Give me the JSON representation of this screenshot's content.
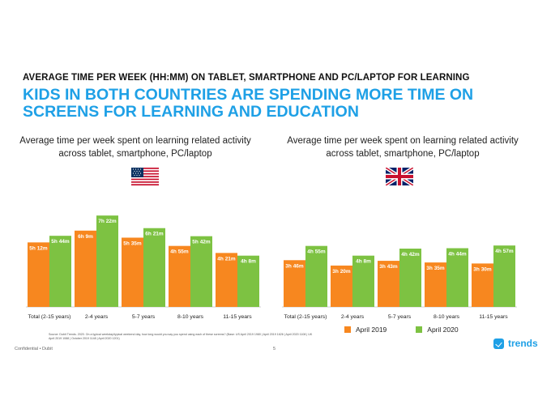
{
  "header": {
    "kicker": "AVERAGE TIME PER WEEK (HH:MM) ON TABLET, SMARTPHONE AND PC/LAPTOP FOR LEARNING",
    "headline": "KIDS IN BOTH COUNTRIES ARE SPENDING MORE TIME ON SCREENS FOR LEARNING AND EDUCATION"
  },
  "colors": {
    "april2019": "#f7871f",
    "april2020": "#7dc242",
    "accent": "#1ea0e6"
  },
  "chart_data": [
    {
      "type": "bar",
      "country": "US",
      "flag_icon": "us-flag-icon",
      "title": "Average time per week spent on learning related activity across tablet, smartphone, PC/laptop",
      "categories": [
        "Total (2-15 years)",
        "2-4 years",
        "5-7 years",
        "8-10 years",
        "11-15 years"
      ],
      "series": [
        {
          "name": "April 2019",
          "values_minutes": [
            312,
            369,
            335,
            295,
            261
          ],
          "labels": [
            "5h 12m",
            "6h 9m",
            "5h 35m",
            "4h 55m",
            "4h 21m"
          ]
        },
        {
          "name": "April 2020",
          "values_minutes": [
            344,
            442,
            381,
            342,
            248
          ],
          "labels": [
            "5h 44m",
            "7h 22m",
            "6h 21m",
            "5h 42m",
            "4h 8m"
          ]
        }
      ],
      "ylim": [
        0,
        470
      ],
      "grid": false
    },
    {
      "type": "bar",
      "country": "UK",
      "flag_icon": "uk-flag-icon",
      "title": "Average time per week spent on learning related activity across tablet, smartphone, PC/laptop",
      "categories": [
        "Total (2-15 years)",
        "2-4 years",
        "5-7 years",
        "8-10 years",
        "11-15 years"
      ],
      "series": [
        {
          "name": "April 2019",
          "values_minutes": [
            226,
            200,
            223,
            215,
            210
          ],
          "labels": [
            "3h 46m",
            "3h 20m",
            "3h 43m",
            "3h 35m",
            "3h 30m"
          ]
        },
        {
          "name": "April 2020",
          "values_minutes": [
            295,
            248,
            282,
            284,
            297
          ],
          "labels": [
            "4h 55m",
            "4h 8m",
            "4h 42m",
            "4h 44m",
            "4h 57m"
          ]
        }
      ],
      "ylim": [
        0,
        470
      ],
      "grid": false
    }
  ],
  "legend": {
    "april2019": "April 2019",
    "april2020": "April 2020"
  },
  "source": "Source: Dubit Trends. 2020. On a typical weekday/typical weekend day, how long would you say you spend using each of these screens? (Base: US April 2019 1980 | April 2019 1626 | April 2020 1108 | UK April 2019 1088 | October 2019 1148 | April 2020 1201)",
  "footer": {
    "left": "Confidential • Dubit",
    "page": "5"
  },
  "brand": {
    "name": "trends",
    "icon": "checkmark-logo-icon"
  }
}
